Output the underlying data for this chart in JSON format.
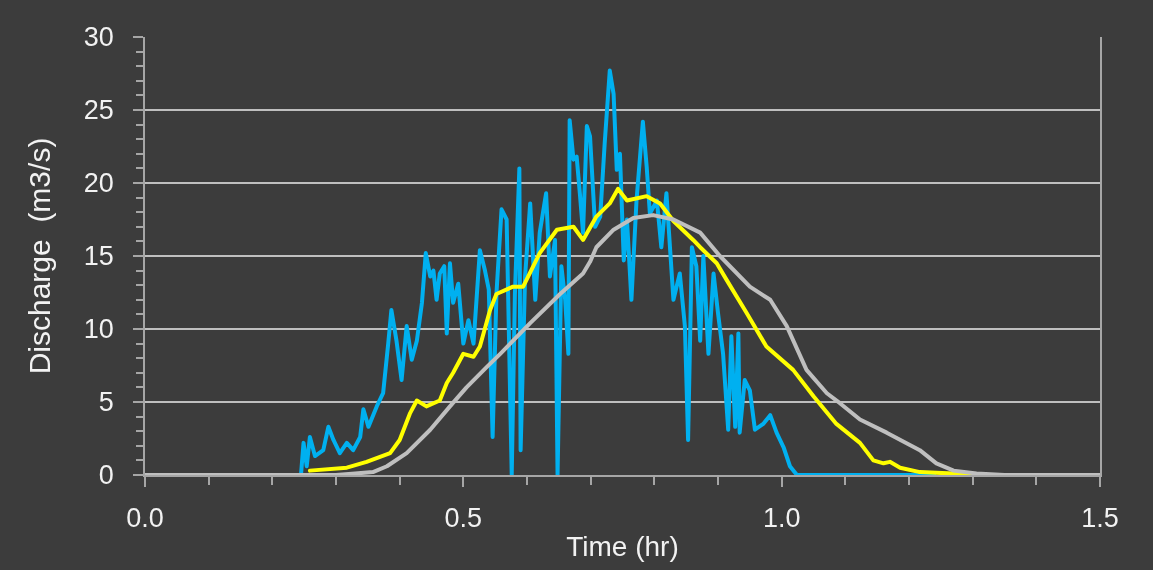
{
  "chart_data": {
    "type": "line",
    "xlabel": "Time (hr)",
    "ylabel": "Discharge  (m3/s)",
    "xlim": [
      0,
      1.5
    ],
    "ylim": [
      0,
      30
    ],
    "xticks": [
      {
        "value": 0,
        "label": "0.0"
      },
      {
        "value": 0.1,
        "label": null
      },
      {
        "value": 0.2,
        "label": null
      },
      {
        "value": 0.3,
        "label": null
      },
      {
        "value": 0.4,
        "label": null
      },
      0.5,
      {
        "value": 0.6,
        "label": null
      },
      {
        "value": 0.7,
        "label": null
      },
      {
        "value": 0.8,
        "label": null
      },
      {
        "value": 0.9,
        "label": null
      },
      {
        "value": 1,
        "label": "1.0"
      },
      {
        "value": 1.1,
        "label": null
      },
      {
        "value": 1.2,
        "label": null
      },
      {
        "value": 1.3,
        "label": null
      },
      {
        "value": 1.4,
        "label": null
      },
      1.5
    ],
    "yticks": [
      0,
      {
        "value": 1,
        "label": null
      },
      {
        "value": 2,
        "label": null
      },
      {
        "value": 3,
        "label": null
      },
      {
        "value": 4,
        "label": null
      },
      5,
      {
        "value": 6,
        "label": null
      },
      {
        "value": 7,
        "label": null
      },
      {
        "value": 8,
        "label": null
      },
      {
        "value": 9,
        "label": null
      },
      10,
      {
        "value": 11,
        "label": null
      },
      {
        "value": 12,
        "label": null
      },
      {
        "value": 13,
        "label": null
      },
      {
        "value": 14,
        "label": null
      },
      15,
      {
        "value": 16,
        "label": null
      },
      {
        "value": 17,
        "label": null
      },
      {
        "value": 18,
        "label": null
      },
      {
        "value": 19,
        "label": null
      },
      20,
      {
        "value": 21,
        "label": null
      },
      {
        "value": 22,
        "label": null
      },
      {
        "value": 23,
        "label": null
      },
      {
        "value": 24,
        "label": null
      },
      25,
      {
        "value": 26,
        "label": null
      },
      {
        "value": 27,
        "label": null
      },
      {
        "value": 28,
        "label": null
      },
      {
        "value": 29,
        "label": null
      },
      30
    ],
    "grid": "y",
    "series": [
      {
        "color": "#00b0f0",
        "x": [
          0.245,
          0.249,
          0.254,
          0.259,
          0.267,
          0.28,
          0.288,
          0.296,
          0.306,
          0.317,
          0.327,
          0.338,
          0.343,
          0.351,
          0.364,
          0.374,
          0.382,
          0.387,
          0.395,
          0.403,
          0.411,
          0.419,
          0.427,
          0.435,
          0.441,
          0.448,
          0.453,
          0.458,
          0.463,
          0.47,
          0.474,
          0.479,
          0.484,
          0.492,
          0.5,
          0.508,
          0.516,
          0.526,
          0.534,
          0.54,
          0.546,
          0.552,
          0.56,
          0.568,
          0.576,
          0.581,
          0.588,
          0.59,
          0.597,
          0.605,
          0.613,
          0.62,
          0.63,
          0.636,
          0.644,
          0.648,
          0.654,
          0.66,
          0.665,
          0.667,
          0.673,
          0.678,
          0.683,
          0.688,
          0.694,
          0.699,
          0.707,
          0.715,
          0.722,
          0.73,
          0.736,
          0.741,
          0.746,
          0.752,
          0.757,
          0.764,
          0.772,
          0.782,
          0.788,
          0.793,
          0.804,
          0.811,
          0.819,
          0.83,
          0.84,
          0.848,
          0.853,
          0.859,
          0.866,
          0.872,
          0.877,
          0.885,
          0.893,
          0.9,
          0.908,
          0.916,
          0.921,
          0.927,
          0.932,
          0.934,
          0.942,
          0.95,
          0.958,
          0.971,
          0.982,
          0.992,
          1.003,
          1.013,
          1.024,
          1.24
        ],
        "values": [
          0,
          2.2,
          0.6,
          2.6,
          1.3,
          1.7,
          3.3,
          2.4,
          1.5,
          2.2,
          1.7,
          2.6,
          4.5,
          3.3,
          4.7,
          5.6,
          9.0,
          11.3,
          9.2,
          6.5,
          10.2,
          7.9,
          9.2,
          11.8,
          15.2,
          13.6,
          14.0,
          12.0,
          13.8,
          14.3,
          9.7,
          14.5,
          11.8,
          13.1,
          9.0,
          10.6,
          9.0,
          15.4,
          14.0,
          12.7,
          2.6,
          12.4,
          18.2,
          17.5,
          0,
          12.4,
          21.0,
          1.7,
          13.6,
          18.6,
          12.0,
          16.6,
          19.3,
          13.6,
          16.1,
          0,
          14.3,
          12.0,
          8.3,
          24.3,
          21.6,
          21.8,
          19.3,
          16.6,
          23.9,
          23.2,
          17.0,
          17.7,
          22.7,
          27.7,
          26.1,
          20.9,
          22.0,
          14.7,
          17.5,
          12.0,
          18.8,
          24.2,
          21.1,
          17.9,
          18.8,
          15.6,
          19.3,
          12.0,
          13.8,
          10.2,
          2.4,
          15.6,
          14.3,
          9.2,
          15.0,
          8.3,
          13.8,
          11.1,
          8.3,
          3.1,
          9.5,
          3.3,
          9.7,
          2.9,
          6.5,
          5.8,
          3.1,
          3.5,
          4.1,
          2.9,
          1.9,
          0.6,
          0,
          0
        ]
      },
      {
        "color": "#ffff00",
        "x": [
          0.259,
          0.317,
          0.348,
          0.385,
          0.4,
          0.416,
          0.427,
          0.442,
          0.463,
          0.474,
          0.484,
          0.5,
          0.516,
          0.526,
          0.542,
          0.552,
          0.578,
          0.594,
          0.62,
          0.647,
          0.673,
          0.688,
          0.709,
          0.73,
          0.743,
          0.757,
          0.788,
          0.809,
          0.83,
          0.861,
          0.872,
          0.898,
          0.913,
          0.945,
          0.976,
          1.018,
          1.05,
          1.086,
          1.123,
          1.144,
          1.16,
          1.17,
          1.186,
          1.217,
          1.27,
          1.3
        ],
        "values": [
          0.3,
          0.5,
          0.9,
          1.5,
          2.4,
          4.2,
          5.1,
          4.7,
          5.1,
          6.3,
          7.0,
          8.3,
          8.1,
          8.8,
          11.3,
          12.4,
          12.9,
          12.9,
          15.2,
          16.8,
          17.0,
          16.1,
          17.7,
          18.6,
          19.6,
          18.8,
          19.1,
          18.6,
          17.4,
          16.1,
          15.6,
          14.5,
          13.4,
          11.1,
          8.8,
          7.2,
          5.4,
          3.5,
          2.2,
          1.0,
          0.8,
          0.9,
          0.5,
          0.2,
          0.1,
          0
        ]
      },
      {
        "color": "#bfbfbf",
        "x": [
          0,
          0.2,
          0.3,
          0.33,
          0.358,
          0.38,
          0.411,
          0.448,
          0.479,
          0.505,
          0.537,
          0.558,
          0.605,
          0.652,
          0.688,
          0.699,
          0.709,
          0.736,
          0.767,
          0.798,
          0.83,
          0.872,
          0.903,
          0.95,
          0.982,
          1.008,
          1.039,
          1.071,
          1.092,
          1.123,
          1.165,
          1.217,
          1.243,
          1.27,
          1.306,
          1.35,
          1.5
        ],
        "values": [
          0,
          0,
          0,
          0.1,
          0.2,
          0.6,
          1.5,
          3.1,
          4.7,
          6.0,
          7.4,
          8.3,
          10.4,
          12.4,
          13.8,
          14.6,
          15.6,
          16.8,
          17.6,
          17.8,
          17.5,
          16.6,
          15.0,
          12.9,
          12.0,
          10.2,
          7.2,
          5.6,
          4.9,
          3.8,
          2.9,
          1.7,
          0.8,
          0.3,
          0.1,
          0,
          0
        ]
      }
    ]
  }
}
